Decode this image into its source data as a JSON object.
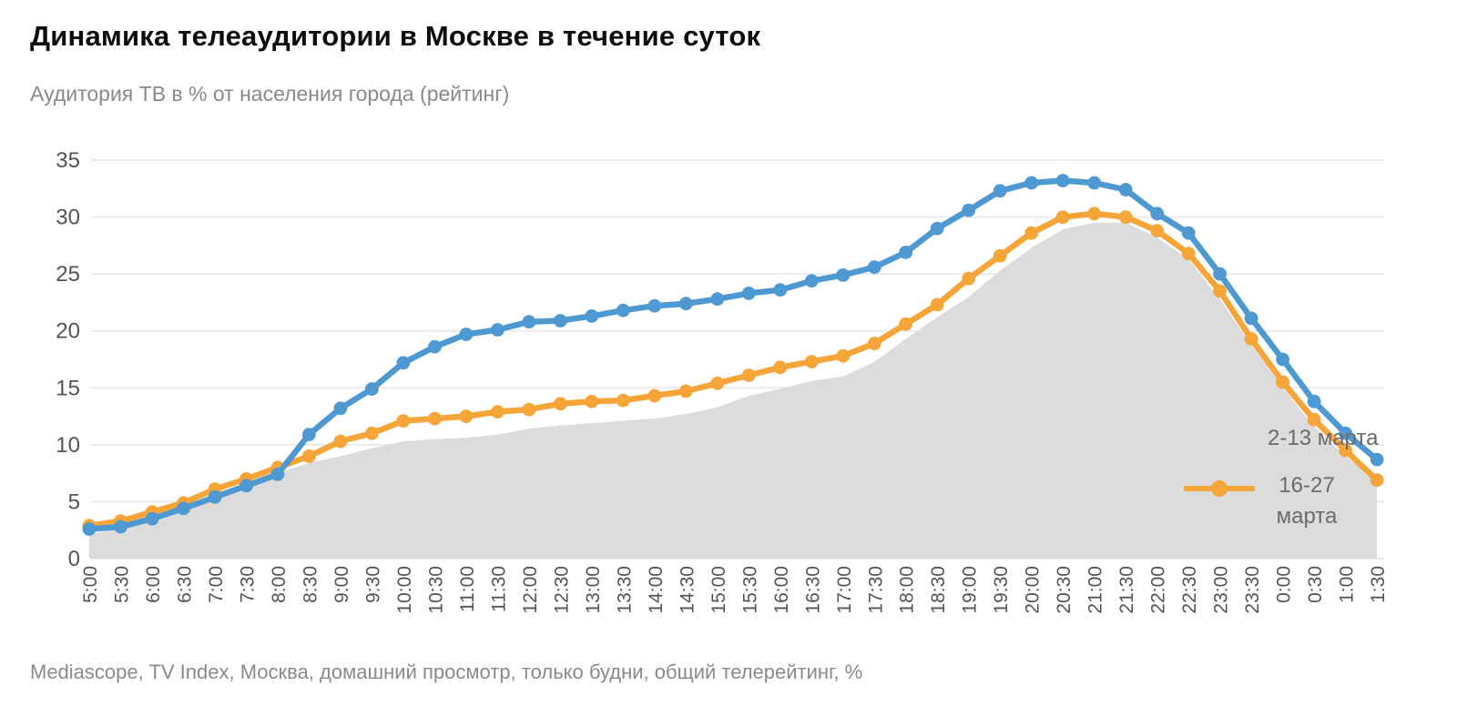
{
  "header": {
    "title": "Динамика телеаудитории в Москве в течение суток",
    "subtitle": "Аудитория ТВ в % от населения города (рейтинг)"
  },
  "legend": {
    "blue_label": "2-13 марта",
    "orange_label": "16-27 марта"
  },
  "footer": {
    "source": "Mediascope, TV Index, Москва, домашний просмотр, только будни, общий телерейтинг, %"
  },
  "colors": {
    "blue": "#4f99d3",
    "orange": "#f6a538",
    "area": "#dcdcdc",
    "grid": "#ebebeb",
    "axis_text": "#545454"
  },
  "chart_data": {
    "type": "line",
    "title": "Динамика телеаудитории в Москве в течение суток",
    "ylabel": "Аудитория ТВ в % от населения города (рейтинг)",
    "xlabel": "",
    "grid": "horizontal",
    "legend_position": "inline-right",
    "ylim": [
      0,
      35
    ],
    "yticks": [
      0,
      5,
      10,
      15,
      20,
      25,
      30,
      35
    ],
    "x": [
      "5:00",
      "5:30",
      "6:00",
      "6:30",
      "7:00",
      "7:30",
      "8:00",
      "8:30",
      "9:00",
      "9:30",
      "10:00",
      "10:30",
      "11:00",
      "11:30",
      "12:00",
      "12:30",
      "13:00",
      "13:30",
      "14:00",
      "14:30",
      "15:00",
      "15:30",
      "16:00",
      "16:30",
      "17:00",
      "17:30",
      "18:00",
      "18:30",
      "19:00",
      "19:30",
      "20:00",
      "20:30",
      "21:00",
      "21:30",
      "22:00",
      "22:30",
      "23:00",
      "23:30",
      "0:00",
      "0:30",
      "1:00",
      "1:30"
    ],
    "series": [
      {
        "name": "2-13 марта",
        "style": "line+markers",
        "color_key": "blue",
        "values": [
          2.6,
          2.8,
          3.5,
          4.4,
          5.4,
          6.4,
          7.4,
          10.9,
          13.2,
          14.9,
          17.2,
          18.6,
          19.7,
          20.1,
          20.8,
          20.9,
          21.3,
          21.8,
          22.2,
          22.4,
          22.8,
          23.3,
          23.6,
          24.4,
          24.9,
          25.6,
          26.9,
          29.0,
          30.6,
          32.3,
          33.0,
          33.2,
          33.0,
          32.4,
          30.3,
          28.6,
          25.0,
          21.1,
          17.5,
          13.8,
          11.0,
          8.7
        ]
      },
      {
        "name": "16-27 марта",
        "style": "line+markers",
        "color_key": "orange",
        "values": [
          2.9,
          3.3,
          4.1,
          4.9,
          6.1,
          7.0,
          8.0,
          9.0,
          10.3,
          11.0,
          12.1,
          12.3,
          12.5,
          12.9,
          13.1,
          13.6,
          13.8,
          13.9,
          14.3,
          14.7,
          15.4,
          16.1,
          16.8,
          17.3,
          17.8,
          18.9,
          20.6,
          22.3,
          24.6,
          26.6,
          28.6,
          30.0,
          30.3,
          30.0,
          28.8,
          26.8,
          23.5,
          19.3,
          15.5,
          12.2,
          9.5,
          6.9
        ]
      },
      {
        "name": "",
        "style": "area",
        "color_key": "area",
        "values": [
          2.2,
          2.6,
          3.2,
          4.2,
          5.3,
          6.3,
          7.5,
          8.4,
          9.0,
          9.7,
          10.3,
          10.5,
          10.6,
          10.9,
          11.4,
          11.7,
          11.9,
          12.1,
          12.3,
          12.7,
          13.3,
          14.3,
          14.9,
          15.6,
          16.0,
          17.3,
          19.3,
          21.2,
          23.0,
          25.3,
          27.3,
          28.9,
          29.5,
          29.5,
          28.2,
          26.3,
          22.8,
          18.8,
          15.0,
          11.6,
          9.0,
          6.8
        ]
      }
    ]
  }
}
